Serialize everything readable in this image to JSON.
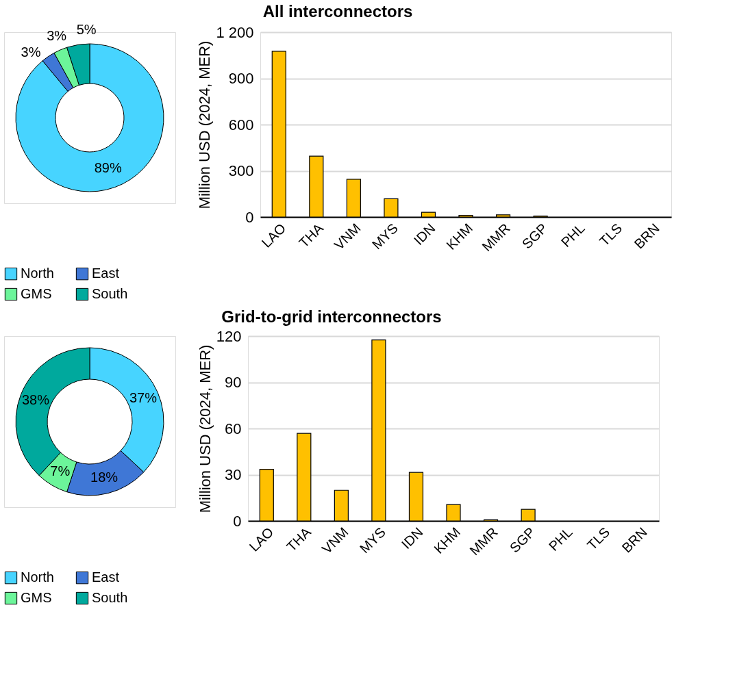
{
  "chart_data": [
    {
      "type": "donut",
      "categories": [
        "North",
        "East",
        "GMS",
        "South"
      ],
      "values": [
        89,
        3,
        3,
        5
      ],
      "value_labels": [
        "89%",
        "3%",
        "3%",
        "5%"
      ],
      "data_labels": true,
      "colors": [
        "#47d4ff",
        "#3f77d6",
        "#6cf59a",
        "#00a99d"
      ],
      "legend": "bottom"
    },
    {
      "type": "bar",
      "title": "All interconnectors",
      "ylabel": "Million USD (2024, MER)",
      "categories": [
        "LAO",
        "THA",
        "VNM",
        "MYS",
        "IDN",
        "KHM",
        "MMR",
        "SGP",
        "PHL",
        "TLS",
        "BRN"
      ],
      "values": [
        1076,
        395,
        245,
        118,
        31,
        11,
        14,
        6,
        0,
        0,
        0
      ],
      "color": "#ffc000",
      "ylim": [
        0,
        1200
      ],
      "yticks": [
        0,
        300,
        600,
        900,
        {
          "value": 1200,
          "label": "1 200"
        }
      ],
      "grid": "y"
    },
    {
      "type": "donut",
      "categories": [
        "North",
        "East",
        "GMS",
        "South"
      ],
      "values": [
        37,
        18,
        7,
        38
      ],
      "value_labels": [
        "37%",
        "18%",
        "7%",
        "38%"
      ],
      "data_labels": true,
      "colors": [
        "#47d4ff",
        "#3f77d6",
        "#6cf59a",
        "#00a99d"
      ],
      "legend": "bottom"
    },
    {
      "type": "bar",
      "title": "Grid-to-grid interconnectors",
      "ylabel": "Million USD (2024, MER)",
      "categories": [
        "LAO",
        "THA",
        "VNM",
        "MYS",
        "IDN",
        "KHM",
        "MMR",
        "SGP",
        "PHL",
        "TLS",
        "BRN"
      ],
      "values": [
        33.5,
        56.8,
        19.9,
        117.5,
        31.5,
        10.6,
        0.7,
        7.5,
        0,
        0,
        0
      ],
      "color": "#ffc000",
      "ylim": [
        0,
        120
      ],
      "yticks": [
        0,
        30,
        60,
        90,
        120
      ],
      "grid": "y"
    }
  ]
}
